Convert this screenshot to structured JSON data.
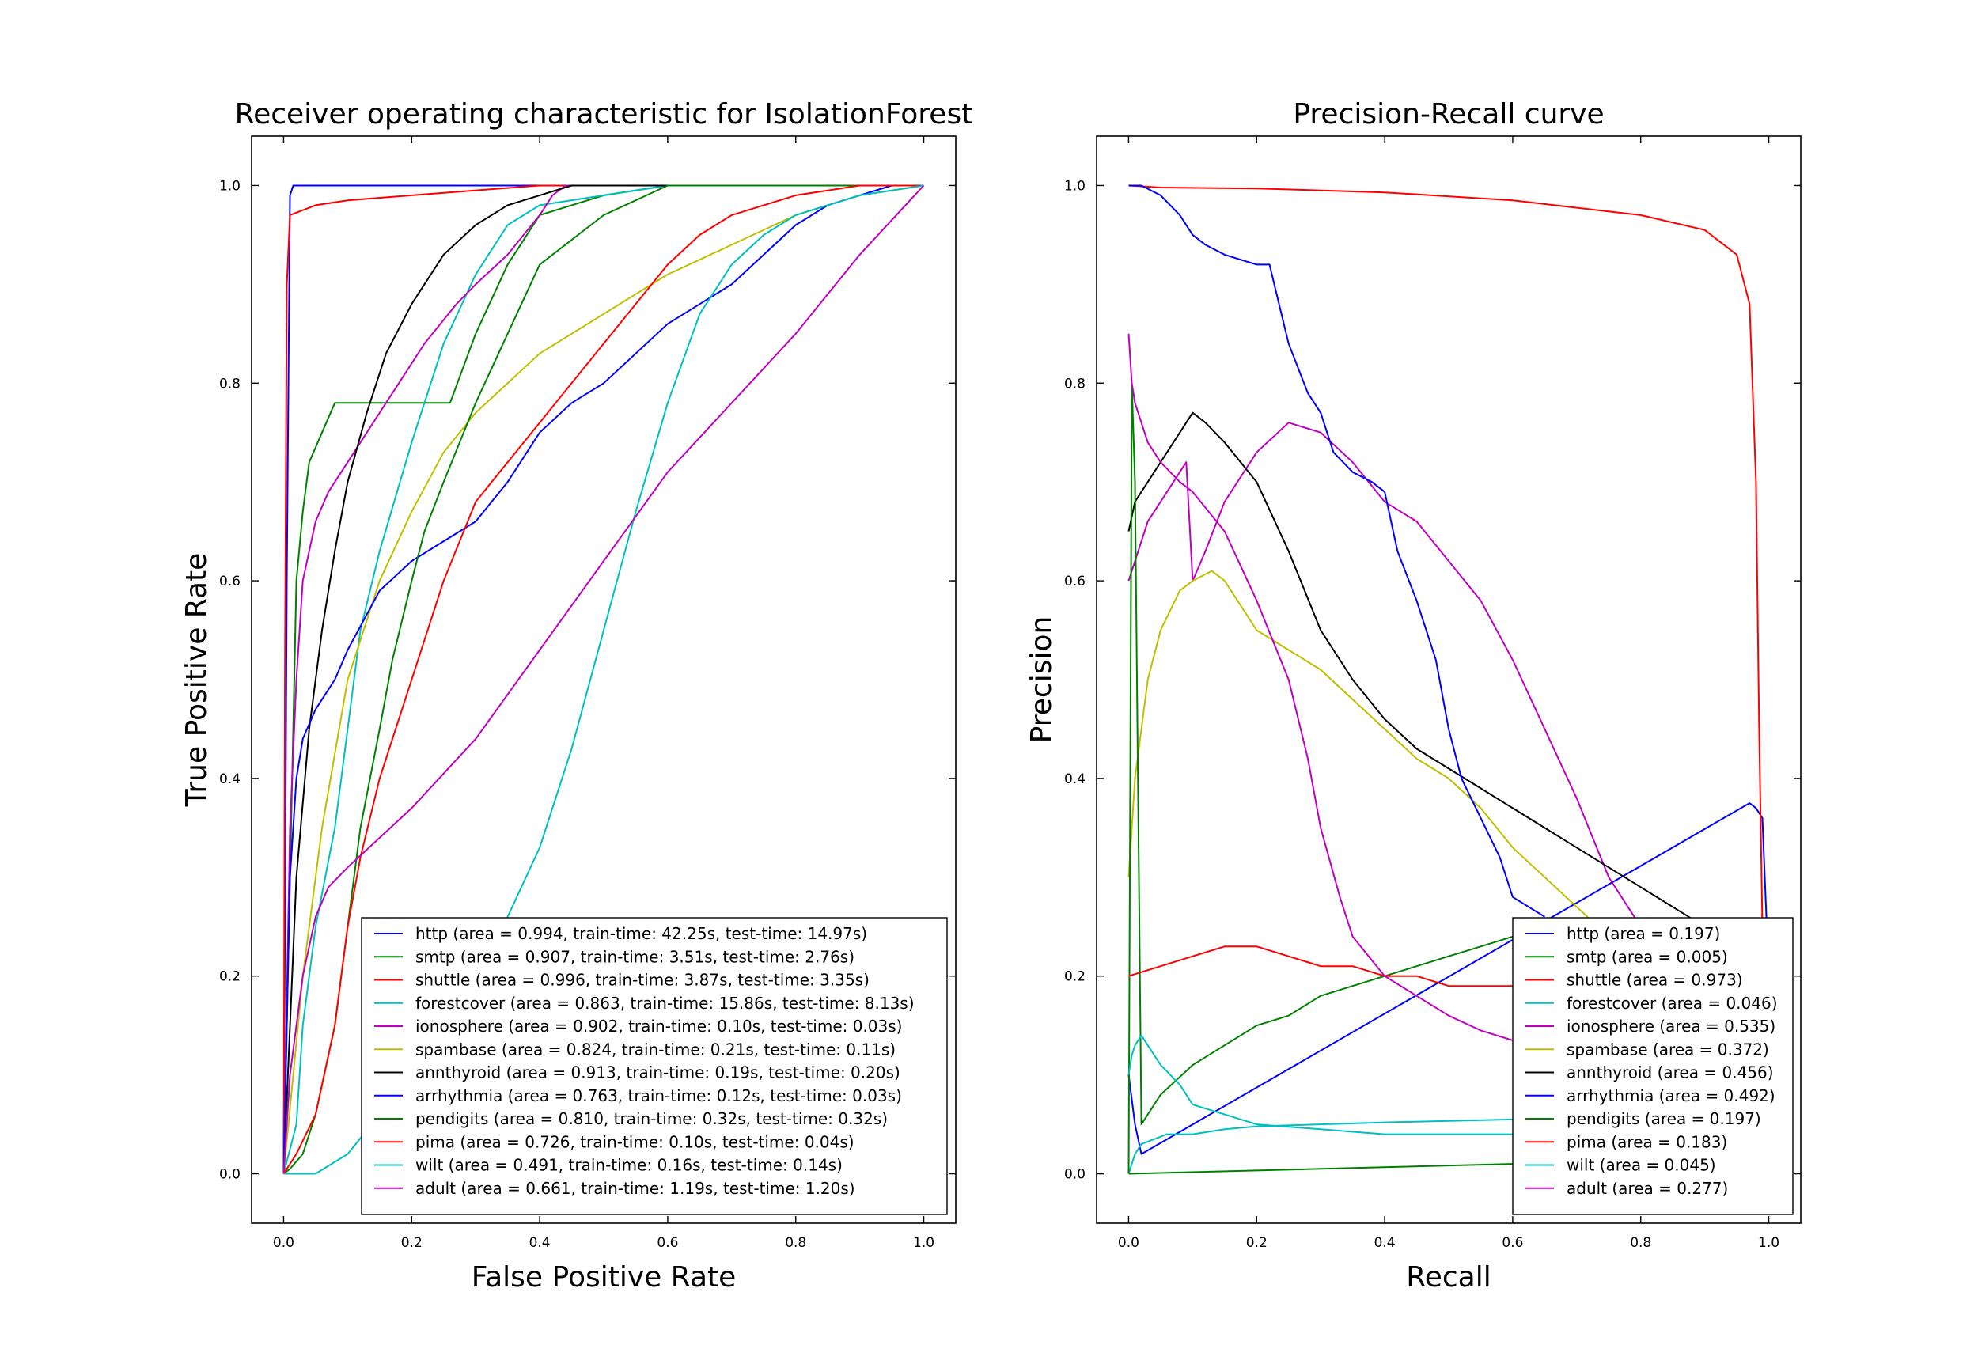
{
  "colors": {
    "blue": "#0000ff",
    "green": "#008000",
    "red": "#ff0000",
    "cyan": "#00bfbf",
    "magenta": "#bf00bf",
    "olive": "#bfbf00",
    "black": "#000000"
  },
  "chart_data": [
    {
      "type": "line",
      "title": "Receiver operating characteristic for IsolationForest",
      "xlabel": "False Positive Rate",
      "ylabel": "True Positive Rate",
      "xlim": [
        -0.05,
        1.05
      ],
      "ylim": [
        -0.05,
        1.05
      ],
      "xticks": [
        "0.0",
        "0.2",
        "0.4",
        "0.6",
        "0.8",
        "1.0"
      ],
      "yticks": [
        "0.0",
        "0.2",
        "0.4",
        "0.6",
        "0.8",
        "1.0"
      ],
      "grid": false,
      "legend_position": "lower-right",
      "series": [
        {
          "name": "http (area = 0.994, train-time: 42.25s, test-time: 14.97s)",
          "color": "#0000ff",
          "x": [
            0,
            0.005,
            0.01,
            0.015,
            1
          ],
          "y": [
            0,
            0.6,
            0.99,
            1.0,
            1.0
          ]
        },
        {
          "name": "smtp (area = 0.907, train-time: 3.51s, test-time: 2.76s)",
          "color": "#008000",
          "x": [
            0,
            0.02,
            0.03,
            0.04,
            0.06,
            0.08,
            0.1,
            0.15,
            0.22,
            0.26,
            0.3,
            0.35,
            0.4,
            0.5,
            0.6,
            0.8,
            1.0
          ],
          "y": [
            0,
            0.6,
            0.67,
            0.72,
            0.75,
            0.78,
            0.78,
            0.78,
            0.78,
            0.78,
            0.85,
            0.92,
            0.97,
            0.99,
            1.0,
            1.0,
            1.0
          ]
        },
        {
          "name": "shuttle (area = 0.996, train-time: 3.87s, test-time: 3.35s)",
          "color": "#ff0000",
          "x": [
            0,
            0.002,
            0.005,
            0.01,
            0.05,
            0.1,
            0.2,
            0.4,
            1.0
          ],
          "y": [
            0,
            0.5,
            0.9,
            0.97,
            0.98,
            0.985,
            0.99,
            1.0,
            1.0
          ]
        },
        {
          "name": "forestcover (area = 0.863, train-time: 15.86s, test-time: 8.13s)",
          "color": "#00bfbf",
          "x": [
            0,
            0.02,
            0.03,
            0.05,
            0.08,
            0.1,
            0.12,
            0.15,
            0.2,
            0.25,
            0.3,
            0.35,
            0.4,
            0.5,
            0.6,
            0.7,
            1.0
          ],
          "y": [
            0,
            0.05,
            0.15,
            0.25,
            0.35,
            0.45,
            0.55,
            0.63,
            0.74,
            0.84,
            0.91,
            0.96,
            0.98,
            0.99,
            1.0,
            1.0,
            1.0
          ]
        },
        {
          "name": "ionosphere (area = 0.902, train-time: 0.10s, test-time: 0.03s)",
          "color": "#bf00bf",
          "x": [
            0,
            0.01,
            0.02,
            0.03,
            0.05,
            0.07,
            0.1,
            0.14,
            0.18,
            0.22,
            0.27,
            0.3,
            0.35,
            0.4,
            0.42,
            0.44,
            1.0
          ],
          "y": [
            0,
            0.35,
            0.5,
            0.6,
            0.66,
            0.69,
            0.72,
            0.76,
            0.8,
            0.84,
            0.88,
            0.9,
            0.93,
            0.97,
            0.99,
            1.0,
            1.0
          ]
        },
        {
          "name": "spambase (area = 0.824, train-time: 0.21s, test-time: 0.11s)",
          "color": "#bfbf00",
          "x": [
            0,
            0.03,
            0.06,
            0.1,
            0.15,
            0.2,
            0.25,
            0.3,
            0.4,
            0.5,
            0.6,
            0.7,
            0.8,
            0.9,
            1.0
          ],
          "y": [
            0,
            0.2,
            0.35,
            0.5,
            0.6,
            0.67,
            0.73,
            0.77,
            0.83,
            0.87,
            0.91,
            0.94,
            0.97,
            0.99,
            1.0
          ]
        },
        {
          "name": "annthyroid (area = 0.913, train-time: 0.19s, test-time: 0.20s)",
          "color": "#000000",
          "x": [
            0,
            0.02,
            0.04,
            0.06,
            0.08,
            0.1,
            0.13,
            0.16,
            0.2,
            0.25,
            0.3,
            0.35,
            0.4,
            0.45,
            1.0
          ],
          "y": [
            0,
            0.3,
            0.45,
            0.55,
            0.63,
            0.7,
            0.77,
            0.83,
            0.88,
            0.93,
            0.96,
            0.98,
            0.99,
            1.0,
            1.0
          ]
        },
        {
          "name": "arrhythmia (area = 0.763, train-time: 0.12s, test-time: 0.03s)",
          "color": "#0000ff",
          "x": [
            0,
            0.01,
            0.02,
            0.03,
            0.05,
            0.08,
            0.1,
            0.15,
            0.2,
            0.25,
            0.3,
            0.35,
            0.4,
            0.45,
            0.5,
            0.55,
            0.6,
            0.65,
            0.7,
            0.75,
            0.8,
            0.85,
            0.9,
            0.95,
            1.0
          ],
          "y": [
            0,
            0.3,
            0.4,
            0.44,
            0.47,
            0.5,
            0.53,
            0.59,
            0.62,
            0.64,
            0.66,
            0.7,
            0.75,
            0.78,
            0.8,
            0.83,
            0.86,
            0.88,
            0.9,
            0.93,
            0.96,
            0.98,
            0.99,
            1.0,
            1.0
          ]
        },
        {
          "name": "pendigits (area = 0.810, train-time: 0.32s, test-time: 0.32s)",
          "color": "#008000",
          "x": [
            0,
            0.01,
            0.03,
            0.05,
            0.08,
            0.1,
            0.12,
            0.15,
            0.17,
            0.2,
            0.22,
            0.25,
            0.3,
            0.35,
            0.4,
            0.5,
            0.6,
            1.0
          ],
          "y": [
            0,
            0.005,
            0.02,
            0.06,
            0.15,
            0.25,
            0.35,
            0.45,
            0.52,
            0.6,
            0.65,
            0.7,
            0.78,
            0.85,
            0.92,
            0.97,
            1.0,
            1.0
          ]
        },
        {
          "name": "pima (area = 0.726, train-time: 0.10s, test-time: 0.04s)",
          "color": "#ff0000",
          "x": [
            0,
            0.02,
            0.05,
            0.08,
            0.1,
            0.12,
            0.15,
            0.2,
            0.25,
            0.3,
            0.35,
            0.4,
            0.45,
            0.5,
            0.55,
            0.6,
            0.65,
            0.7,
            0.75,
            0.8,
            0.85,
            0.9,
            1.0
          ],
          "y": [
            0,
            0.02,
            0.06,
            0.15,
            0.25,
            0.32,
            0.4,
            0.5,
            0.6,
            0.68,
            0.72,
            0.76,
            0.8,
            0.84,
            0.88,
            0.92,
            0.95,
            0.97,
            0.98,
            0.99,
            0.995,
            1.0,
            1.0
          ]
        },
        {
          "name": "wilt (area = 0.491, train-time: 0.16s, test-time: 0.14s)",
          "color": "#00bfbf",
          "x": [
            0,
            0.05,
            0.1,
            0.2,
            0.3,
            0.35,
            0.4,
            0.45,
            0.5,
            0.55,
            0.6,
            0.65,
            0.7,
            0.75,
            0.8,
            0.9,
            1.0
          ],
          "y": [
            0,
            0.0,
            0.02,
            0.1,
            0.2,
            0.26,
            0.33,
            0.43,
            0.55,
            0.67,
            0.78,
            0.87,
            0.92,
            0.95,
            0.97,
            0.99,
            1.0
          ]
        },
        {
          "name": "adult (area = 0.661, train-time: 1.19s, test-time: 1.20s)",
          "color": "#bf00bf",
          "x": [
            0,
            0.01,
            0.03,
            0.05,
            0.07,
            0.1,
            0.15,
            0.2,
            0.3,
            0.4,
            0.5,
            0.6,
            0.7,
            0.8,
            0.9,
            1.0
          ],
          "y": [
            0,
            0.1,
            0.2,
            0.26,
            0.29,
            0.31,
            0.34,
            0.37,
            0.44,
            0.53,
            0.62,
            0.71,
            0.78,
            0.85,
            0.93,
            1.0
          ]
        }
      ]
    },
    {
      "type": "line",
      "title": "Precision-Recall curve",
      "xlabel": "Recall",
      "ylabel": "Precision",
      "xlim": [
        -0.05,
        1.05
      ],
      "ylim": [
        -0.05,
        1.05
      ],
      "xticks": [
        "0.0",
        "0.2",
        "0.4",
        "0.6",
        "0.8",
        "1.0"
      ],
      "yticks": [
        "0.0",
        "0.2",
        "0.4",
        "0.6",
        "0.8",
        "1.0"
      ],
      "grid": false,
      "legend_position": "lower-right",
      "series": [
        {
          "name": "http (area = 0.197)",
          "color": "#0000ff",
          "x": [
            0,
            0.01,
            0.02,
            0.97,
            0.98,
            0.99,
            1.0
          ],
          "y": [
            0.1,
            0.05,
            0.02,
            0.375,
            0.37,
            0.36,
            0.2
          ]
        },
        {
          "name": "smtp (area = 0.005)",
          "color": "#008000",
          "x": [
            0,
            0.6,
            1.0
          ],
          "y": [
            0.0,
            0.01,
            0.005
          ]
        },
        {
          "name": "shuttle (area = 0.973)",
          "color": "#ff0000",
          "x": [
            0,
            0.05,
            0.2,
            0.4,
            0.6,
            0.8,
            0.9,
            0.95,
            0.97,
            0.98,
            0.985,
            0.99,
            1.0
          ],
          "y": [
            1.0,
            0.998,
            0.997,
            0.993,
            0.985,
            0.97,
            0.955,
            0.93,
            0.88,
            0.7,
            0.45,
            0.25,
            0.05
          ]
        },
        {
          "name": "forestcover (area = 0.046)",
          "color": "#00bfbf",
          "x": [
            0,
            0.01,
            0.02,
            0.04,
            0.06,
            0.1,
            0.15,
            0.2,
            0.3,
            0.4,
            0.6,
            0.8,
            1.0
          ],
          "y": [
            0.0,
            0.02,
            0.03,
            0.035,
            0.04,
            0.04,
            0.045,
            0.048,
            0.05,
            0.052,
            0.055,
            0.058,
            0.06
          ]
        },
        {
          "name": "ionosphere (area = 0.535)",
          "color": "#bf00bf",
          "x": [
            0,
            0.03,
            0.06,
            0.09,
            0.1,
            0.12,
            0.15,
            0.2,
            0.25,
            0.3,
            0.35,
            0.4,
            0.45,
            0.5,
            0.55,
            0.6,
            0.65,
            0.7,
            0.75,
            0.8,
            0.85,
            1.0
          ],
          "y": [
            0.6,
            0.66,
            0.69,
            0.72,
            0.6,
            0.63,
            0.68,
            0.73,
            0.76,
            0.75,
            0.72,
            0.68,
            0.66,
            0.62,
            0.58,
            0.52,
            0.45,
            0.38,
            0.3,
            0.25,
            0.2,
            0.15
          ]
        },
        {
          "name": "spambase (area = 0.372)",
          "color": "#bfbf00",
          "x": [
            0,
            0.01,
            0.03,
            0.05,
            0.08,
            0.1,
            0.13,
            0.15,
            0.2,
            0.25,
            0.3,
            0.35,
            0.4,
            0.45,
            0.5,
            0.55,
            0.6,
            0.65,
            0.7,
            0.75
          ],
          "y": [
            0.3,
            0.4,
            0.5,
            0.55,
            0.59,
            0.6,
            0.61,
            0.6,
            0.55,
            0.53,
            0.51,
            0.48,
            0.45,
            0.42,
            0.4,
            0.37,
            0.33,
            0.3,
            0.27,
            0.24
          ]
        },
        {
          "name": "annthyroid (area = 0.456)",
          "color": "#000000",
          "x": [
            0,
            0.01,
            0.03,
            0.05,
            0.08,
            0.1,
            0.12,
            0.15,
            0.2,
            0.25,
            0.3,
            0.35,
            0.4,
            0.45,
            0.5,
            0.55,
            0.6,
            0.65,
            0.7,
            0.75,
            0.8,
            0.85,
            0.9
          ],
          "y": [
            0.65,
            0.68,
            0.7,
            0.72,
            0.75,
            0.77,
            0.76,
            0.74,
            0.7,
            0.63,
            0.55,
            0.5,
            0.46,
            0.43,
            0.41,
            0.39,
            0.37,
            0.35,
            0.33,
            0.31,
            0.29,
            0.27,
            0.25
          ]
        },
        {
          "name": "arrhythmia (area = 0.492)",
          "color": "#0000ff",
          "x": [
            0,
            0.02,
            0.05,
            0.08,
            0.1,
            0.12,
            0.15,
            0.2,
            0.22,
            0.25,
            0.28,
            0.3,
            0.32,
            0.35,
            0.38,
            0.4,
            0.42,
            0.45,
            0.48,
            0.5,
            0.52,
            0.55,
            0.58,
            0.6,
            0.65
          ],
          "y": [
            1.0,
            1.0,
            0.99,
            0.97,
            0.95,
            0.94,
            0.93,
            0.92,
            0.92,
            0.84,
            0.79,
            0.77,
            0.73,
            0.71,
            0.7,
            0.69,
            0.63,
            0.58,
            0.52,
            0.45,
            0.4,
            0.36,
            0.32,
            0.28,
            0.26
          ]
        },
        {
          "name": "pendigits (area = 0.197)",
          "color": "#008000",
          "x": [
            0,
            0.005,
            0.01,
            0.02,
            0.05,
            0.1,
            0.15,
            0.2,
            0.25,
            0.3,
            0.35,
            0.4,
            0.45,
            0.5,
            0.55,
            0.6,
            0.7,
            0.8,
            0.9,
            1.0
          ],
          "y": [
            0.0,
            0.8,
            0.7,
            0.05,
            0.08,
            0.11,
            0.13,
            0.15,
            0.16,
            0.18,
            0.19,
            0.2,
            0.21,
            0.22,
            0.23,
            0.24,
            0.24,
            0.25,
            0.25,
            0.25
          ]
        },
        {
          "name": "pima (area = 0.183)",
          "color": "#ff0000",
          "x": [
            0,
            0.05,
            0.1,
            0.15,
            0.2,
            0.25,
            0.3,
            0.35,
            0.4,
            0.45,
            0.5,
            0.6,
            0.7,
            0.8
          ],
          "y": [
            0.2,
            0.21,
            0.22,
            0.23,
            0.23,
            0.22,
            0.21,
            0.21,
            0.2,
            0.2,
            0.19,
            0.19,
            0.18,
            0.18
          ]
        },
        {
          "name": "wilt (area = 0.045)",
          "color": "#00bfbf",
          "x": [
            0,
            0.005,
            0.01,
            0.02,
            0.03,
            0.05,
            0.08,
            0.1,
            0.15,
            0.2,
            0.3,
            0.4,
            0.5,
            0.6,
            0.7
          ],
          "y": [
            0.1,
            0.12,
            0.13,
            0.14,
            0.13,
            0.11,
            0.09,
            0.07,
            0.06,
            0.05,
            0.045,
            0.04,
            0.04,
            0.04,
            0.04
          ]
        },
        {
          "name": "adult (area = 0.277)",
          "color": "#bf00bf",
          "x": [
            0,
            0.005,
            0.01,
            0.03,
            0.05,
            0.08,
            0.1,
            0.15,
            0.2,
            0.25,
            0.28,
            0.3,
            0.33,
            0.35,
            0.4,
            0.45,
            0.5,
            0.55,
            0.6,
            0.65
          ],
          "y": [
            0.85,
            0.8,
            0.78,
            0.74,
            0.72,
            0.7,
            0.69,
            0.65,
            0.58,
            0.5,
            0.42,
            0.35,
            0.28,
            0.24,
            0.2,
            0.18,
            0.16,
            0.145,
            0.135,
            0.13
          ]
        }
      ]
    }
  ]
}
